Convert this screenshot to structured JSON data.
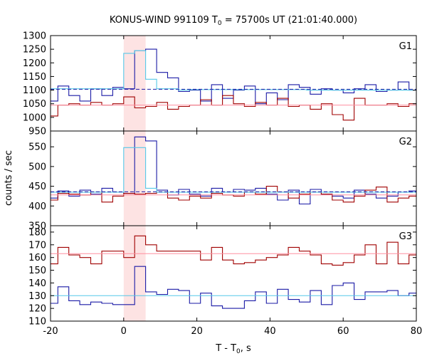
{
  "chart_data": {
    "type": "line",
    "title": {
      "prefix": "KONUS-WIND 991109 T",
      "sub": "0",
      "suffix": " = 75700s UT (21:01:40.000)"
    },
    "xlabel": {
      "prefix": "T - T",
      "sub": "0",
      "suffix": ", s"
    },
    "ylabel": "counts / sec",
    "xlim": [
      -20,
      80
    ],
    "xticks": [
      -20,
      0,
      20,
      40,
      60,
      80
    ],
    "highlight_span": [
      0,
      6
    ],
    "colors": {
      "dark_blue": "#1a1aa6",
      "dark_red": "#a00000",
      "cyan": "#55c8e8",
      "pink": "#ff8fa0",
      "highlight": "#fde3e3"
    },
    "panels": [
      {
        "label": "G1",
        "ylim": [
          950,
          1300
        ],
        "yticks": [
          950,
          1000,
          1050,
          1100,
          1150,
          1200,
          1250,
          1300
        ],
        "series": [
          {
            "kind": "step",
            "color": "dark_blue",
            "edges": [
              -20,
              -18,
              -15,
              -12,
              -9,
              -6,
              -3,
              0,
              3,
              6,
              9,
              12,
              15,
              18,
              21,
              24,
              27,
              30,
              33,
              36,
              39,
              42,
              45,
              48,
              51,
              54,
              57,
              60,
              63,
              66,
              69,
              72,
              75,
              78,
              80
            ],
            "values": [
              1060,
              1115,
              1080,
              1060,
              1105,
              1080,
              1110,
              1105,
              1245,
              1250,
              1165,
              1145,
              1095,
              1100,
              1060,
              1120,
              1070,
              1100,
              1115,
              1050,
              1090,
              1065,
              1120,
              1110,
              1085,
              1105,
              1100,
              1090,
              1105,
              1120,
              1095,
              1100,
              1130,
              1100
            ]
          },
          {
            "kind": "step",
            "color": "dark_red",
            "edges": [
              -20,
              -18,
              -15,
              -12,
              -9,
              -6,
              -3,
              0,
              3,
              6,
              9,
              12,
              15,
              18,
              21,
              24,
              27,
              30,
              33,
              36,
              39,
              42,
              45,
              48,
              51,
              54,
              57,
              60,
              63,
              66,
              69,
              72,
              75,
              78,
              80
            ],
            "values": [
              1005,
              1045,
              1050,
              1045,
              1055,
              1045,
              1050,
              1075,
              1035,
              1040,
              1055,
              1030,
              1040,
              1045,
              1065,
              1045,
              1080,
              1050,
              1040,
              1055,
              1045,
              1070,
              1040,
              1045,
              1030,
              1050,
              1010,
              990,
              1070,
              1045,
              1045,
              1050,
              1040,
              1050
            ]
          },
          {
            "kind": "step",
            "color": "cyan",
            "edges": [
              -20,
              0,
              3,
              6,
              9,
              15,
              18,
              50,
              60,
              80
            ],
            "values": [
              1105,
              1235,
              1245,
              1140,
              1105,
              1100,
              1102,
              1100,
              1100
            ]
          },
          {
            "kind": "hline",
            "color": "dark_blue",
            "dashed": true,
            "value": 1103
          },
          {
            "kind": "hline",
            "color": "pink",
            "dashed": false,
            "value": 1045
          }
        ]
      },
      {
        "label": "G2",
        "ylim": [
          350,
          590
        ],
        "yticks": [
          350,
          400,
          450,
          500,
          550
        ],
        "series": [
          {
            "kind": "step",
            "color": "dark_blue",
            "edges": [
              -20,
              -18,
              -15,
              -12,
              -9,
              -6,
              -3,
              0,
              3,
              6,
              9,
              12,
              15,
              18,
              21,
              24,
              27,
              30,
              33,
              36,
              39,
              42,
              45,
              48,
              51,
              54,
              57,
              60,
              63,
              66,
              69,
              72,
              75,
              78,
              80
            ],
            "values": [
              420,
              438,
              425,
              440,
              430,
              445,
              435,
              432,
              575,
              565,
              440,
              428,
              442,
              430,
              425,
              445,
              435,
              442,
              440,
              445,
              430,
              415,
              440,
              405,
              442,
              430,
              425,
              420,
              440,
              430,
              420,
              425,
              435,
              438
            ]
          },
          {
            "kind": "step",
            "color": "dark_red",
            "edges": [
              -20,
              -18,
              -15,
              -12,
              -9,
              -6,
              -3,
              0,
              3,
              6,
              9,
              12,
              15,
              18,
              21,
              24,
              27,
              30,
              33,
              36,
              39,
              42,
              45,
              48,
              51,
              54,
              57,
              60,
              63,
              66,
              69,
              72,
              75,
              78,
              80
            ],
            "values": [
              415,
              432,
              430,
              428,
              435,
              410,
              425,
              432,
              430,
              432,
              435,
              420,
              415,
              425,
              420,
              432,
              428,
              425,
              435,
              430,
              450,
              435,
              420,
              430,
              435,
              430,
              415,
              410,
              425,
              440,
              448,
              410,
              420,
              425
            ]
          },
          {
            "kind": "step",
            "color": "cyan",
            "edges": [
              -20,
              0,
              3,
              6,
              9,
              80
            ],
            "values": [
              435,
              548,
              548,
              445,
              435
            ]
          },
          {
            "kind": "hline",
            "color": "dark_blue",
            "dashed": true,
            "value": 436
          },
          {
            "kind": "hline",
            "color": "pink",
            "dashed": false,
            "value": 428
          }
        ]
      },
      {
        "label": "G3",
        "ylim": [
          110,
          185
        ],
        "yticks": [
          110,
          120,
          130,
          140,
          150,
          160,
          170,
          180
        ],
        "series": [
          {
            "kind": "step",
            "color": "dark_red",
            "edges": [
              -20,
              -18,
              -15,
              -12,
              -9,
              -6,
              -3,
              0,
              3,
              6,
              9,
              12,
              15,
              18,
              21,
              24,
              27,
              30,
              33,
              36,
              39,
              42,
              45,
              48,
              51,
              54,
              57,
              60,
              63,
              66,
              69,
              72,
              75,
              78,
              80
            ],
            "values": [
              155,
              168,
              162,
              160,
              155,
              165,
              165,
              160,
              177,
              170,
              165,
              165,
              165,
              165,
              158,
              168,
              158,
              155,
              156,
              158,
              160,
              162,
              168,
              165,
              162,
              155,
              154,
              156,
              162,
              170,
              155,
              172,
              155,
              162
            ]
          },
          {
            "kind": "step",
            "color": "dark_blue",
            "edges": [
              -20,
              -18,
              -15,
              -12,
              -9,
              -6,
              -3,
              0,
              3,
              6,
              9,
              12,
              15,
              18,
              21,
              24,
              27,
              30,
              33,
              36,
              39,
              42,
              45,
              48,
              51,
              54,
              57,
              60,
              63,
              66,
              69,
              72,
              75,
              78,
              80
            ],
            "values": [
              124,
              137,
              126,
              123,
              125,
              124,
              123,
              123,
              153,
              133,
              131,
              135,
              134,
              124,
              132,
              122,
              120,
              120,
              126,
              133,
              124,
              135,
              127,
              125,
              134,
              123,
              138,
              140,
              127,
              133,
              133,
              134,
              130,
              132
            ]
          },
          {
            "kind": "hline",
            "color": "pink",
            "dashed": false,
            "value": 163
          },
          {
            "kind": "hline",
            "color": "cyan",
            "dashed": false,
            "value": 130
          }
        ]
      }
    ]
  }
}
